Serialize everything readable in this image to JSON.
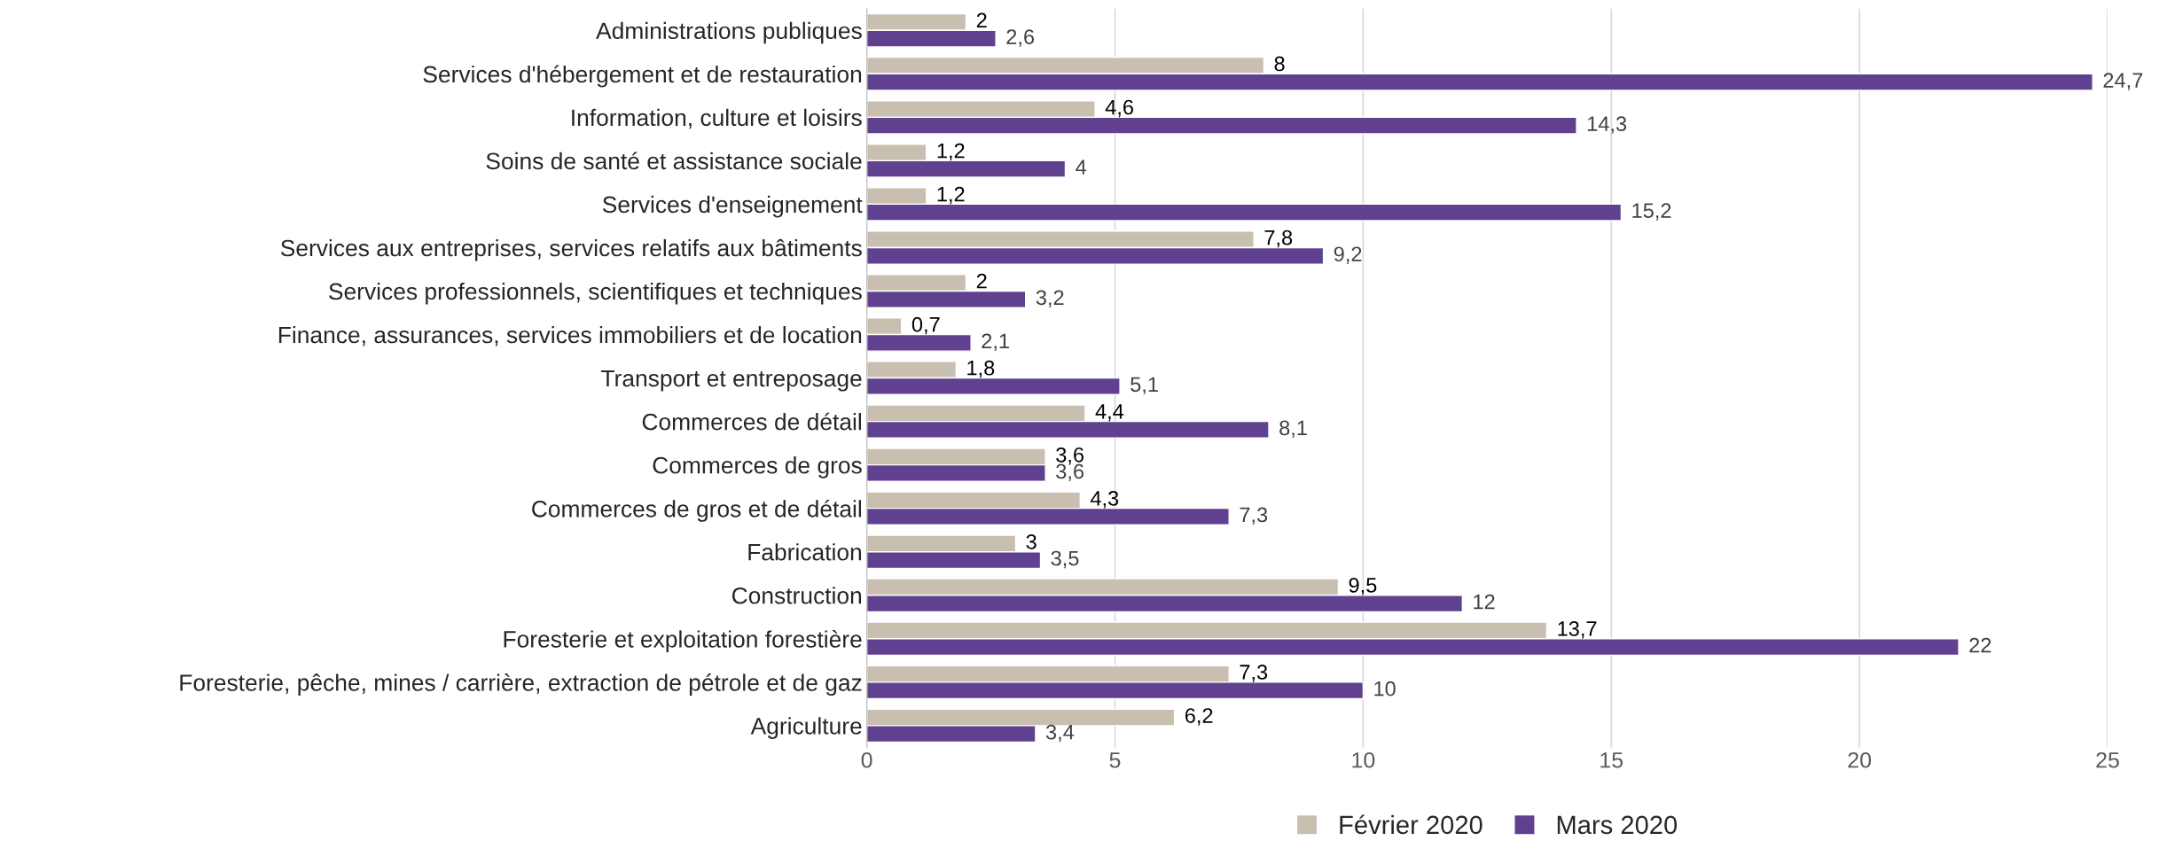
{
  "chart_data": {
    "type": "bar",
    "orientation": "horizontal",
    "categories": [
      "Administrations publiques",
      "Services d'hébergement et de restauration",
      "Information, culture et loisirs",
      "Soins de santé et assistance sociale",
      "Services d'enseignement",
      "Services aux entreprises, services relatifs aux bâtiments",
      "Services professionnels, scientifiques et techniques",
      "Finance, assurances, services immobiliers et de location",
      "Transport et entreposage",
      "Commerces de détail",
      "Commerces de gros",
      "Commerces de gros et de détail",
      "Fabrication",
      "Construction",
      "Foresterie et exploitation forestière",
      "Foresterie, pêche, mines / carrière, extraction de pétrole et de gaz",
      "Agriculture"
    ],
    "series": [
      {
        "name": "Février 2020",
        "color": "#c9bfb1",
        "values": [
          2,
          8,
          4.6,
          1.2,
          1.2,
          7.8,
          2,
          0.7,
          1.8,
          4.4,
          3.6,
          4.3,
          3,
          9.5,
          13.7,
          7.3,
          6.2
        ],
        "value_labels": [
          "2",
          "8",
          "4,6",
          "1,2",
          "1,2",
          "7,8",
          "2",
          "0,7",
          "1,8",
          "4,4",
          "3,6",
          "4,3",
          "3",
          "9,5",
          "13,7",
          "7,3",
          "6,2"
        ]
      },
      {
        "name": "Mars 2020",
        "color": "#60418f",
        "values": [
          2.6,
          24.7,
          14.3,
          4,
          15.2,
          9.2,
          3.2,
          2.1,
          5.1,
          8.1,
          3.6,
          7.3,
          3.5,
          12,
          22,
          10,
          3.4
        ],
        "value_labels": [
          "2,6",
          "24,7",
          "14,3",
          "4",
          "15,2",
          "9,2",
          "3,2",
          "2,1",
          "5,1",
          "8,1",
          "3,6",
          "7,3",
          "3,5",
          "12",
          "22",
          "10",
          "3,4"
        ]
      }
    ],
    "xlim": [
      0,
      25
    ],
    "xticks": [
      0,
      5,
      10,
      15,
      20,
      25
    ],
    "grid": "x",
    "legend": "bottom"
  }
}
